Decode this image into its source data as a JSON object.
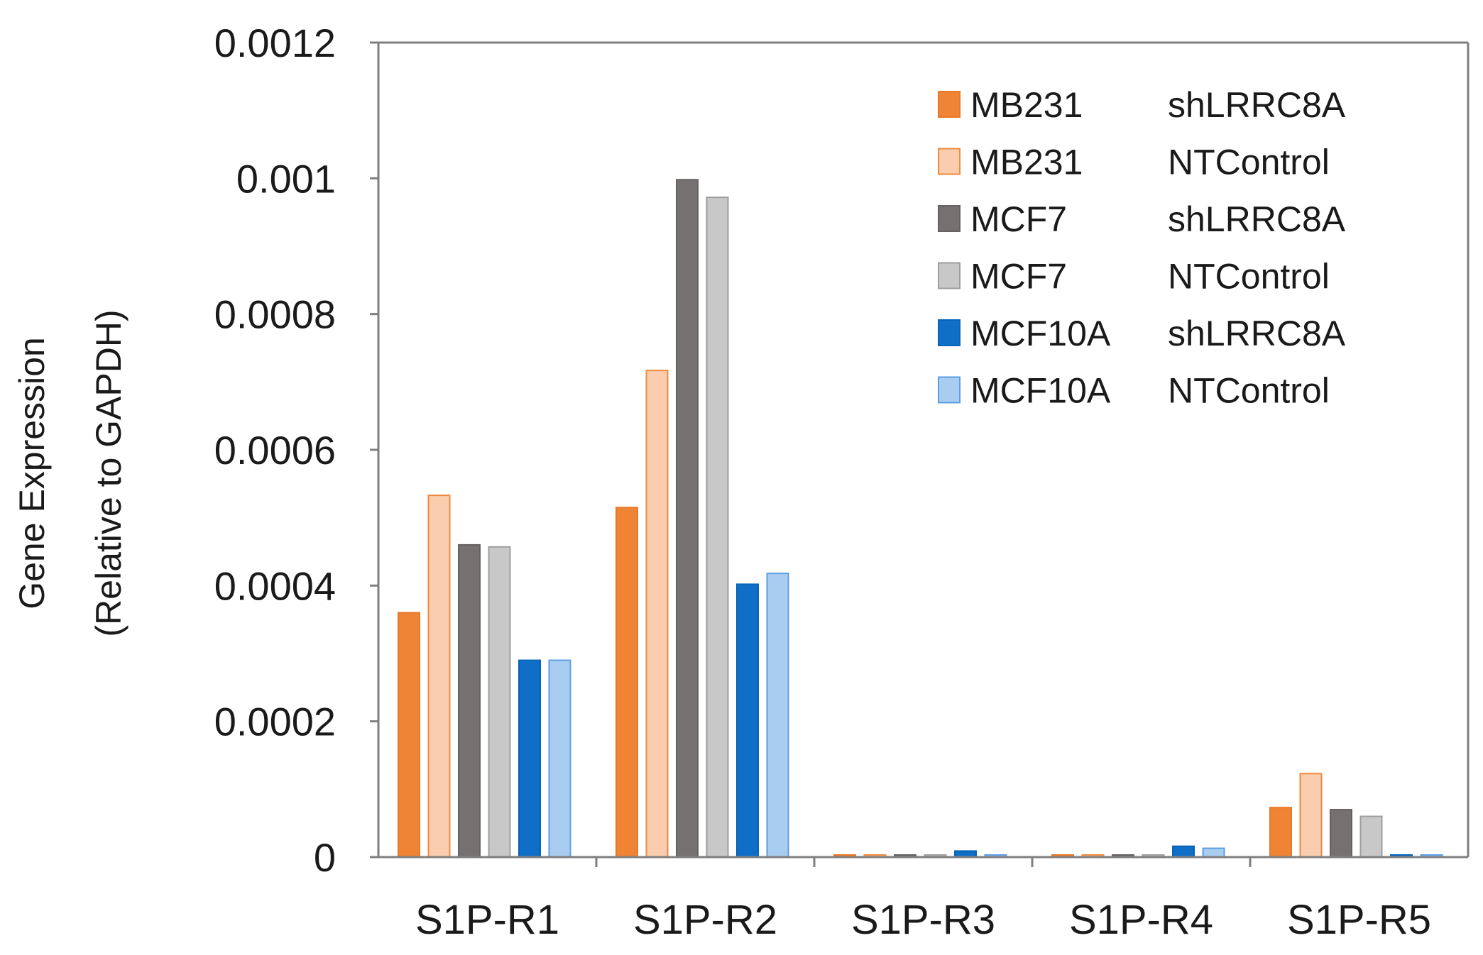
{
  "chart_data": {
    "type": "bar",
    "title": "",
    "xlabel": "",
    "ylabel_line1": "Gene Expression",
    "ylabel_line2": "(Relative to GAPDH)",
    "ylim": [
      0,
      0.0012
    ],
    "yticks": [
      {
        "value": 0,
        "label": "0"
      },
      {
        "value": 0.0002,
        "label": "0.0002"
      },
      {
        "value": 0.0004,
        "label": "0.0004"
      },
      {
        "value": 0.0006,
        "label": "0.0006"
      },
      {
        "value": 0.0008,
        "label": "0.0008"
      },
      {
        "value": 0.001,
        "label": "0.001"
      },
      {
        "value": 0.0012,
        "label": "0.0012"
      }
    ],
    "categories": [
      "S1P-R1",
      "S1P-R2",
      "S1P-R3",
      "S1P-R4",
      "S1P-R5"
    ],
    "legend_position": "top-right",
    "series": [
      {
        "cell": "MB231",
        "condition": "shLRRC8A",
        "fill": "#f08435",
        "stroke": "#e8782a",
        "values": [
          0.00036,
          0.000515,
          3e-06,
          3e-06,
          7.3e-05
        ]
      },
      {
        "cell": "MB231",
        "condition": "NTControl",
        "fill": "#f9cdae",
        "stroke": "#f08a40",
        "values": [
          0.000533,
          0.000717,
          3e-06,
          3e-06,
          0.000123
        ]
      },
      {
        "cell": "MCF7",
        "condition": "shLRRC8A",
        "fill": "#767171",
        "stroke": "#666262",
        "values": [
          0.00046,
          0.000998,
          2e-06,
          2e-06,
          7e-05
        ]
      },
      {
        "cell": "MCF7",
        "condition": "NTControl",
        "fill": "#c8c8c8",
        "stroke": "#9e9e9e",
        "values": [
          0.000457,
          0.000972,
          2e-06,
          2e-06,
          6e-05
        ]
      },
      {
        "cell": "MCF10A",
        "condition": "shLRRC8A",
        "fill": "#0f6fc6",
        "stroke": "#0a64b8",
        "values": [
          0.00029,
          0.000402,
          9e-06,
          1.6e-05,
          3e-06
        ]
      },
      {
        "cell": "MCF10A",
        "condition": "NTControl",
        "fill": "#a9cdf0",
        "stroke": "#5e9de0",
        "values": [
          0.00029,
          0.000418,
          3e-06,
          1.3e-05,
          3e-06
        ]
      }
    ]
  }
}
